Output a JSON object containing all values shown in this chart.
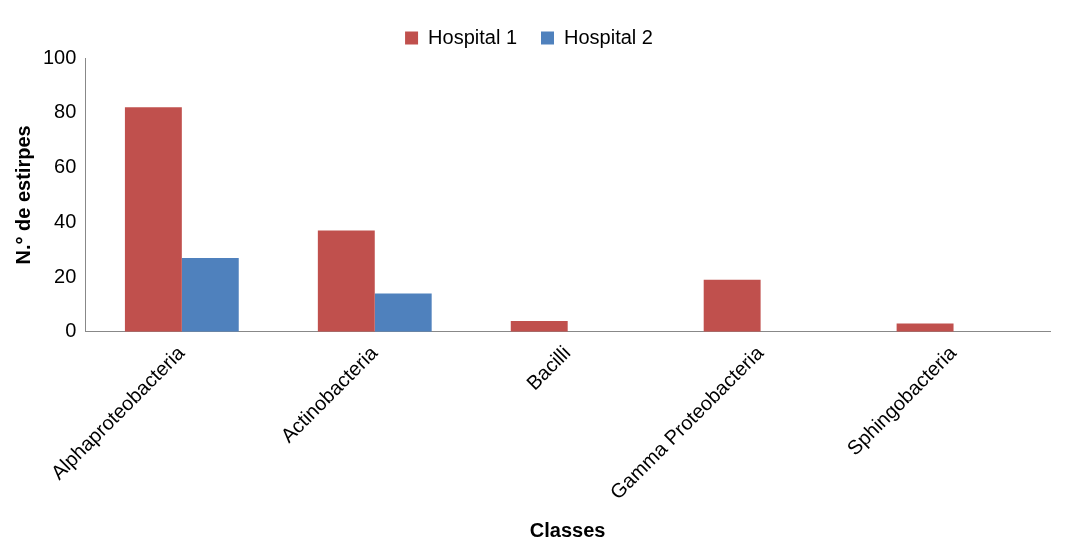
{
  "chart_data": {
    "type": "bar",
    "xlabel": "Classes",
    "ylabel": "N.° de estirpes",
    "categories": [
      "Alphaproteobacteria",
      "Actinobacteria",
      "Bacilli",
      "Gamma Proteobacteria",
      "Sphingobacteria"
    ],
    "series": [
      {
        "name": "Hospital 1",
        "color": "#c0504d",
        "values": [
          82,
          37,
          4,
          19,
          3
        ]
      },
      {
        "name": "Hospital 2",
        "color": "#4f81bd",
        "values": [
          27,
          14,
          0,
          0,
          0
        ]
      }
    ],
    "ylim": [
      0,
      100
    ],
    "yticks": [
      0,
      20,
      40,
      60,
      80,
      100
    ],
    "grid": false,
    "legend": "top"
  }
}
